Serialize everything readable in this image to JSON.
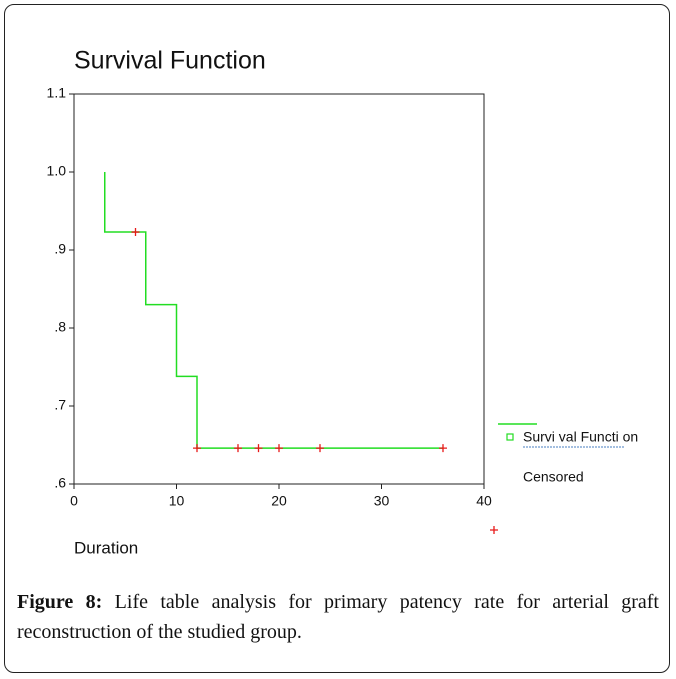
{
  "chart_data": {
    "type": "line",
    "title": "Survival Function",
    "xlabel": "Duration",
    "series": [
      {
        "name": "Survi val Functi on",
        "color": "#22dd22",
        "x": [
          3,
          3,
          7,
          7,
          10,
          10,
          12,
          12,
          36
        ],
        "values": [
          1.0,
          0.923,
          0.923,
          0.83,
          0.83,
          0.738,
          0.738,
          0.646,
          0.646
        ]
      },
      {
        "name": "Censored",
        "color": "#e81818",
        "marker": "+",
        "x": [
          6,
          12,
          16,
          18,
          20,
          24,
          36
        ],
        "values": [
          0.923,
          0.646,
          0.646,
          0.646,
          0.646,
          0.646,
          0.646
        ]
      }
    ],
    "xlim": [
      0,
      40
    ],
    "ylim": [
      0.6,
      1.1
    ],
    "xticks": [
      0,
      10,
      20,
      30,
      40
    ],
    "yticks": [
      {
        "value": 0.6,
        "label": ".6"
      },
      {
        "value": 0.7,
        "label": ".7"
      },
      {
        "value": 0.8,
        "label": ".8"
      },
      {
        "value": 0.9,
        "label": ".9"
      },
      {
        "value": 1.0,
        "label": "1.0"
      },
      1.1
    ]
  },
  "caption": {
    "label": "Figure 8:",
    "text": "Life table analysis for primary patency rate for arterial graft reconstruction of the studied group."
  }
}
